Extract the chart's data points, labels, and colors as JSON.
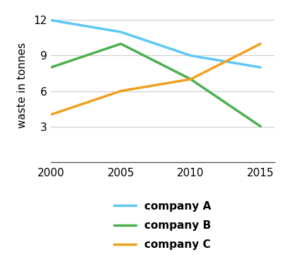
{
  "years": [
    2000,
    2005,
    2010,
    2015
  ],
  "company_A": [
    12,
    11,
    9,
    8
  ],
  "company_B": [
    8,
    10,
    7,
    3
  ],
  "company_C": [
    4,
    6,
    7,
    10
  ],
  "colors": {
    "A": "#5bc8f5",
    "B": "#4caf50",
    "C": "#f0a020"
  },
  "ylabel": "waste in tonnes",
  "ylim": [
    0,
    13
  ],
  "yticks": [
    3,
    6,
    9,
    12
  ],
  "xlim": [
    2000,
    2016
  ],
  "xticks": [
    2000,
    2005,
    2010,
    2015
  ],
  "legend_labels": [
    "company A",
    "company B",
    "company C"
  ],
  "line_width": 2.5,
  "background_color": "#ffffff"
}
